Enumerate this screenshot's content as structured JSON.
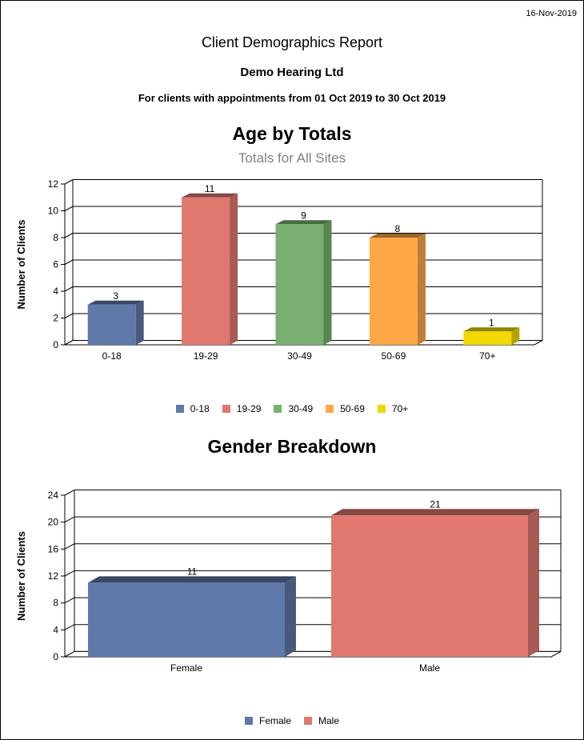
{
  "report": {
    "date": "16-Nov-2019",
    "title": "Client Demographics Report",
    "company": "Demo Hearing Ltd",
    "period": "For clients with appointments from 01 Oct 2019 to 30 Oct 2019"
  },
  "chart_data": [
    {
      "type": "bar",
      "title": "Age by Totals",
      "subtitle": "Totals for All Sites",
      "ylabel": "Number of Clients",
      "ylim": [
        0,
        12
      ],
      "yticks": [
        0,
        2,
        4,
        6,
        8,
        10,
        12
      ],
      "categories": [
        "0-18",
        "19-29",
        "30-49",
        "50-69",
        "70+"
      ],
      "values": [
        3,
        11,
        9,
        8,
        1
      ],
      "colors": [
        "#6078a8",
        "#e07870",
        "#78b070",
        "#ffa848",
        "#f0d800"
      ],
      "legend": [
        "0-18",
        "19-29",
        "30-49",
        "50-69",
        "70+"
      ],
      "legend_position": "bottom",
      "grid": true
    },
    {
      "type": "bar",
      "title": "Gender Breakdown",
      "ylabel": "Number of Clients",
      "ylim": [
        0,
        24
      ],
      "yticks": [
        0,
        4,
        8,
        12,
        16,
        20,
        24
      ],
      "categories": [
        "Female",
        "Male"
      ],
      "values": [
        11,
        21
      ],
      "colors": [
        "#6078a8",
        "#e07870"
      ],
      "legend": [
        "Female",
        "Male"
      ],
      "legend_position": "bottom",
      "grid": true
    }
  ]
}
